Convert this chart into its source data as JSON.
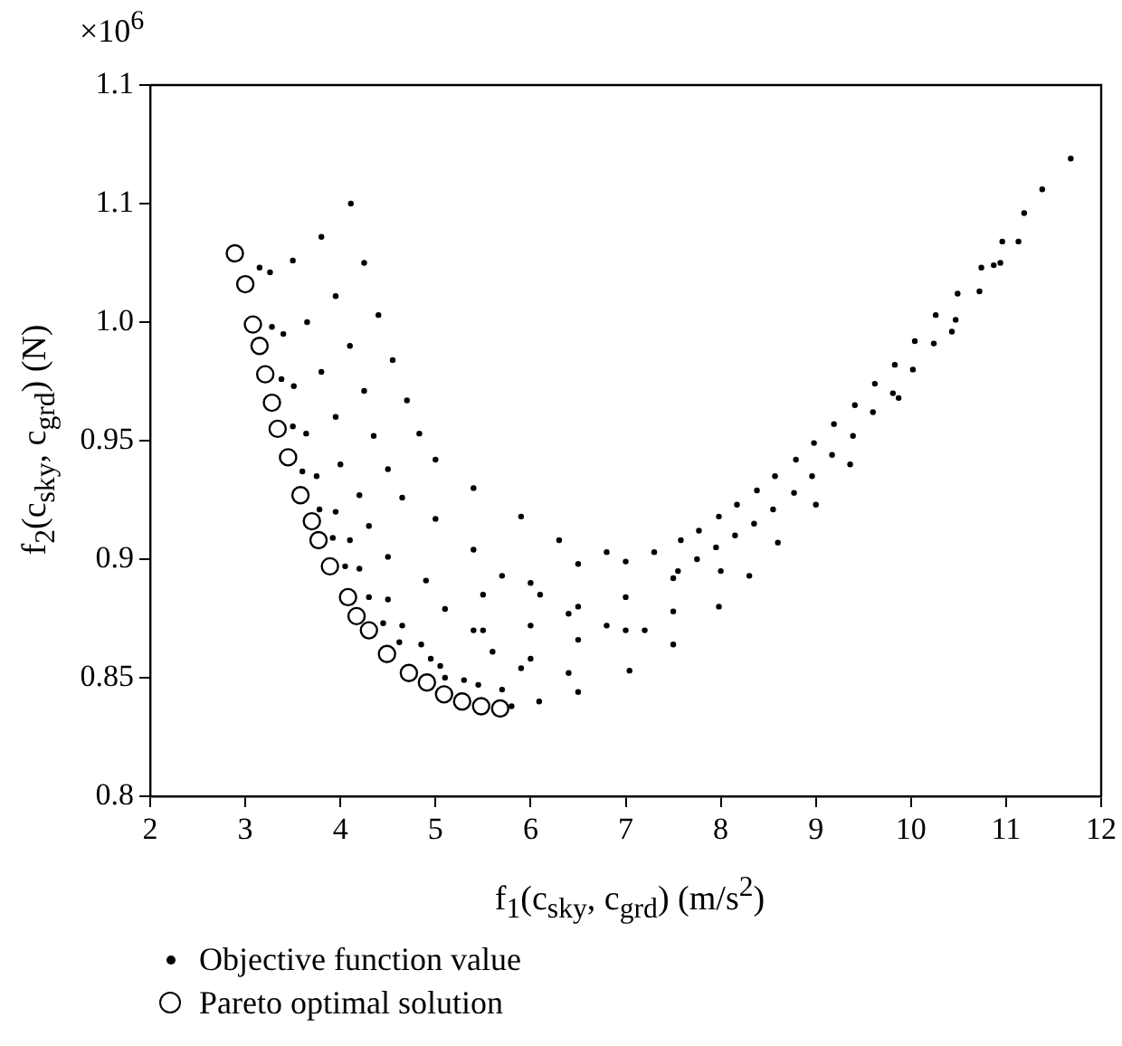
{
  "chart_data": {
    "type": "scatter",
    "xlabel": "f$_{1}$(c$_{sky}$, c$_{grd}$) (m/s$^{2}$)",
    "ylabel": "f$_{2}$(c$_{sky}$, c$_{grd}$) (N)",
    "annotations": [
      "×10$^{6}$"
    ],
    "xlim": [
      2,
      12
    ],
    "xticks": [
      2,
      3,
      4,
      5,
      6,
      7,
      8,
      9,
      10,
      11,
      12
    ],
    "ylim": [
      0.8,
      1.1
    ],
    "yticks": [
      0.8,
      0.85,
      0.9,
      0.95,
      {
        "value": 1,
        "label": "1.0"
      },
      {
        "value": 1.05,
        "label": "1.1"
      },
      1.1
    ],
    "grid": false,
    "legend": "bottom",
    "series": [
      {
        "name": "Objective function value",
        "color": "#000000",
        "marker": "circle",
        "x": [
          3.15,
          3.26,
          3.5,
          3.8,
          4.11,
          3.28,
          3.4,
          3.65,
          3.95,
          4.25,
          3.38,
          3.51,
          3.8,
          4.1,
          4.4,
          3.5,
          3.64,
          3.95,
          4.25,
          4.55,
          3.6,
          3.75,
          4.0,
          4.35,
          4.7,
          3.78,
          3.95,
          4.2,
          4.5,
          4.83,
          3.92,
          4.1,
          4.3,
          4.65,
          5.0,
          4.05,
          4.2,
          4.5,
          5.0,
          5.4,
          4.3,
          4.5,
          4.9,
          5.4,
          5.9,
          4.45,
          4.65,
          5.1,
          5.7,
          6.3,
          4.62,
          4.85,
          5.4,
          6.1,
          6.8,
          4.95,
          5.05,
          5.6,
          6.4,
          7.3,
          5.1,
          5.3,
          5.9,
          6.8,
          5.45,
          5.7,
          6.4,
          7.2,
          7.55,
          7.58,
          7.75,
          7.77,
          7.95,
          7.98,
          8.15,
          8.17,
          8.35,
          8.38,
          8.55,
          8.57,
          8.77,
          8.79,
          8.96,
          8.98,
          9.17,
          9.19,
          9.39,
          9.41,
          9.6,
          9.62,
          9.81,
          9.83,
          10.02,
          10.04,
          10.24,
          10.26,
          10.47,
          10.49,
          10.72,
          10.74,
          10.94,
          10.96,
          11.19,
          11.38,
          11.68,
          5.8,
          6.09,
          6.5,
          7.04,
          7.5,
          7.98,
          8.3,
          8.6,
          9.0,
          9.36,
          9.87,
          10.43,
          10.87,
          11.13,
          6.5,
          7.0,
          6.0,
          6.5,
          7.0,
          6.5,
          7.0,
          7.5,
          7.5,
          6.0,
          6.0,
          8.0,
          5.5,
          5.5
        ],
        "values": [
          1.023,
          1.021,
          1.026,
          1.036,
          1.05,
          0.998,
          0.995,
          1.0,
          1.011,
          1.025,
          0.976,
          0.973,
          0.979,
          0.99,
          1.003,
          0.956,
          0.953,
          0.96,
          0.971,
          0.984,
          0.937,
          0.935,
          0.94,
          0.952,
          0.967,
          0.921,
          0.92,
          0.927,
          0.938,
          0.953,
          0.909,
          0.908,
          0.914,
          0.926,
          0.942,
          0.897,
          0.896,
          0.901,
          0.917,
          0.93,
          0.884,
          0.883,
          0.891,
          0.904,
          0.918,
          0.873,
          0.872,
          0.879,
          0.893,
          0.908,
          0.865,
          0.864,
          0.87,
          0.885,
          0.903,
          0.858,
          0.855,
          0.861,
          0.877,
          0.903,
          0.85,
          0.849,
          0.854,
          0.872,
          0.847,
          0.845,
          0.852,
          0.87,
          0.895,
          0.908,
          0.9,
          0.912,
          0.905,
          0.918,
          0.91,
          0.923,
          0.915,
          0.929,
          0.921,
          0.935,
          0.928,
          0.942,
          0.935,
          0.949,
          0.944,
          0.957,
          0.952,
          0.965,
          0.962,
          0.974,
          0.97,
          0.982,
          0.98,
          0.992,
          0.991,
          1.003,
          1.001,
          1.012,
          1.013,
          1.023,
          1.025,
          1.034,
          1.046,
          1.056,
          1.069,
          0.838,
          0.84,
          0.844,
          0.853,
          0.864,
          0.88,
          0.893,
          0.907,
          0.923,
          0.94,
          0.968,
          0.996,
          1.024,
          1.034,
          0.898,
          0.899,
          0.89,
          0.88,
          0.884,
          0.866,
          0.87,
          0.878,
          0.892,
          0.858,
          0.872,
          0.895,
          0.87,
          0.885
        ]
      },
      {
        "name": "Pareto optimal solution",
        "color": "#000000",
        "marker": "circle",
        "x": [
          2.89,
          3.0,
          3.08,
          3.15,
          3.21,
          3.28,
          3.34,
          3.45,
          3.58,
          3.7,
          3.77,
          3.89,
          4.08,
          4.17,
          4.3,
          4.49,
          4.72,
          4.91,
          5.09,
          5.28,
          5.48,
          5.68
        ],
        "values": [
          1.029,
          1.016,
          0.999,
          0.99,
          0.978,
          0.966,
          0.955,
          0.943,
          0.927,
          0.916,
          0.908,
          0.897,
          0.884,
          0.876,
          0.87,
          0.86,
          0.852,
          0.848,
          0.843,
          0.84,
          0.838,
          0.837
        ]
      }
    ]
  }
}
